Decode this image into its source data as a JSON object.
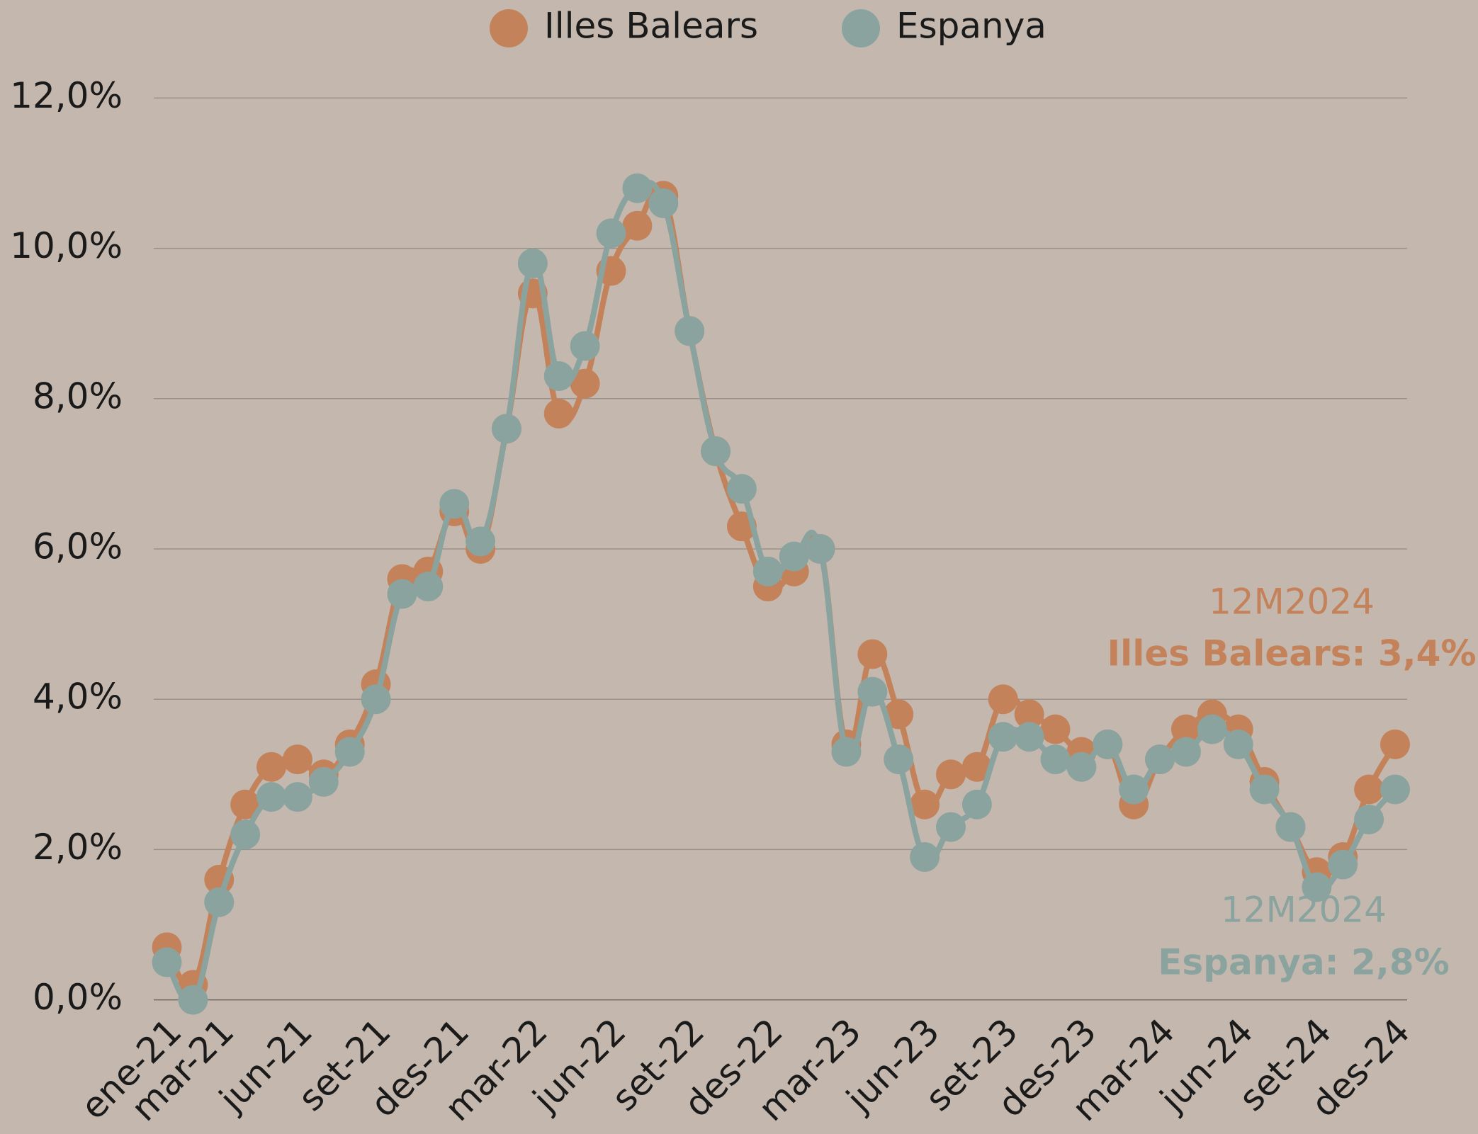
{
  "chart_data": {
    "type": "line",
    "categories": [
      "ene-21",
      null,
      "mar-21",
      null,
      null,
      "jun-21",
      null,
      null,
      "set-21",
      null,
      null,
      "des-21",
      null,
      null,
      "mar-22",
      null,
      null,
      "jun-22",
      null,
      null,
      "set-22",
      null,
      null,
      "des-22",
      null,
      null,
      "mar-23",
      null,
      null,
      "jun-23",
      null,
      null,
      "set-23",
      null,
      null,
      "des-23",
      null,
      null,
      "mar-24",
      null,
      null,
      "jun-24",
      null,
      null,
      "set-24",
      null,
      null,
      "des-24"
    ],
    "series": [
      {
        "name": "Illes Balears",
        "color": "#c4825a",
        "values": [
          0.7,
          0.2,
          1.6,
          2.6,
          3.1,
          3.2,
          3.0,
          3.4,
          4.2,
          5.6,
          5.7,
          6.5,
          6.0,
          7.6,
          9.4,
          7.8,
          8.2,
          9.7,
          10.3,
          10.7,
          8.9,
          7.3,
          6.3,
          5.5,
          5.7,
          6.0,
          3.4,
          4.6,
          3.8,
          2.6,
          3.0,
          3.1,
          4.0,
          3.8,
          3.6,
          3.3,
          3.4,
          2.6,
          3.2,
          3.6,
          3.8,
          3.6,
          2.9,
          2.3,
          1.7,
          1.9,
          2.8,
          3.4
        ]
      },
      {
        "name": "Espanya",
        "color": "#8aa39f",
        "values": [
          0.5,
          0.0,
          1.3,
          2.2,
          2.7,
          2.7,
          2.9,
          3.3,
          4.0,
          5.4,
          5.5,
          6.6,
          6.1,
          7.6,
          9.8,
          8.3,
          8.7,
          10.2,
          10.8,
          10.6,
          8.9,
          7.3,
          6.8,
          5.7,
          5.9,
          6.0,
          3.3,
          4.1,
          3.2,
          1.9,
          2.3,
          2.6,
          3.5,
          3.5,
          3.2,
          3.1,
          3.4,
          2.8,
          3.2,
          3.3,
          3.6,
          3.4,
          2.8,
          2.3,
          1.5,
          1.8,
          2.4,
          2.8
        ]
      }
    ],
    "ylim": [
      0,
      12
    ],
    "yticks": [
      {
        "value": 0,
        "label": "0,0%"
      },
      {
        "value": 2,
        "label": "2,0%"
      },
      {
        "value": 4,
        "label": "4,0%"
      },
      {
        "value": 6,
        "label": "6,0%"
      },
      {
        "value": 8,
        "label": "8,0%"
      },
      {
        "value": 10,
        "label": "10,0%"
      },
      {
        "value": 12,
        "label": "12,0%"
      }
    ],
    "grid": true,
    "legend": "top",
    "annotations": [
      {
        "text": "12M2024",
        "color": "#c4825a",
        "bold": false
      },
      {
        "text": "Illes Balears: 3,4%",
        "color": "#c4825a",
        "bold": true
      },
      {
        "text": "12M2024",
        "color": "#8aa39f",
        "bold": false
      },
      {
        "text": "Espanya: 2,8%",
        "color": "#8aa39f",
        "bold": true
      }
    ]
  }
}
